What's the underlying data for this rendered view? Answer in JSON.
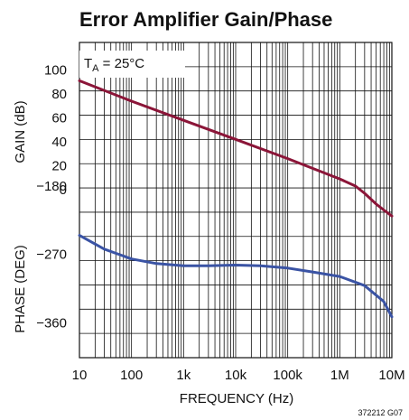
{
  "chart_data": {
    "type": "line",
    "title": "Error Amplifier Gain/Phase",
    "xlabel": "FREQUENCY (Hz)",
    "x_scale": "log",
    "xlim": [
      10,
      10000000
    ],
    "x_ticks": [
      10,
      100,
      1000,
      10000,
      100000,
      1000000,
      10000000
    ],
    "x_tick_labels": [
      "10",
      "100",
      "1k",
      "10k",
      "100k",
      "1M",
      "10M"
    ],
    "ylabel_gain": "GAIN (dB)",
    "ylabel_phase": "PHASE (DEG)",
    "gain_ticks": [
      {
        "value": 100,
        "label": "100"
      },
      {
        "value": 80,
        "label": "80"
      },
      {
        "value": 60,
        "label": "60"
      },
      {
        "value": 40,
        "label": "40"
      },
      {
        "value": 20,
        "label": "20"
      },
      {
        "value": 0,
        "label": "0"
      }
    ],
    "phase_ticks": [
      {
        "value": -180,
        "label": "−180"
      },
      {
        "value": -270,
        "label": "−270"
      },
      {
        "value": -360,
        "label": "−360"
      }
    ],
    "grid": true,
    "annotation": {
      "main": "T",
      "sub": "A",
      "rest": " = 25°C"
    },
    "figure_code": "372212 G07",
    "series": [
      {
        "name": "gain",
        "axis": "gain",
        "unit": "dB",
        "color": "#8b1538",
        "x": [
          10,
          100,
          1000,
          10000,
          100000,
          1000000,
          2000000,
          3000000,
          5000000,
          7000000,
          10000000
        ],
        "y": [
          91,
          74,
          58,
          42,
          26,
          9,
          3,
          -3,
          -12,
          -17,
          -22
        ]
      },
      {
        "name": "phase",
        "axis": "phase",
        "unit": "deg",
        "color": "#3a53a4",
        "x": [
          10,
          30,
          100,
          300,
          1000,
          3000,
          10000,
          30000,
          100000,
          300000,
          1000000,
          3000000,
          7000000,
          10000000
        ],
        "y": [
          -245,
          -263,
          -276,
          -282,
          -285,
          -285,
          -284,
          -285,
          -288,
          -293,
          -299,
          -311,
          -332,
          -352
        ]
      }
    ]
  }
}
